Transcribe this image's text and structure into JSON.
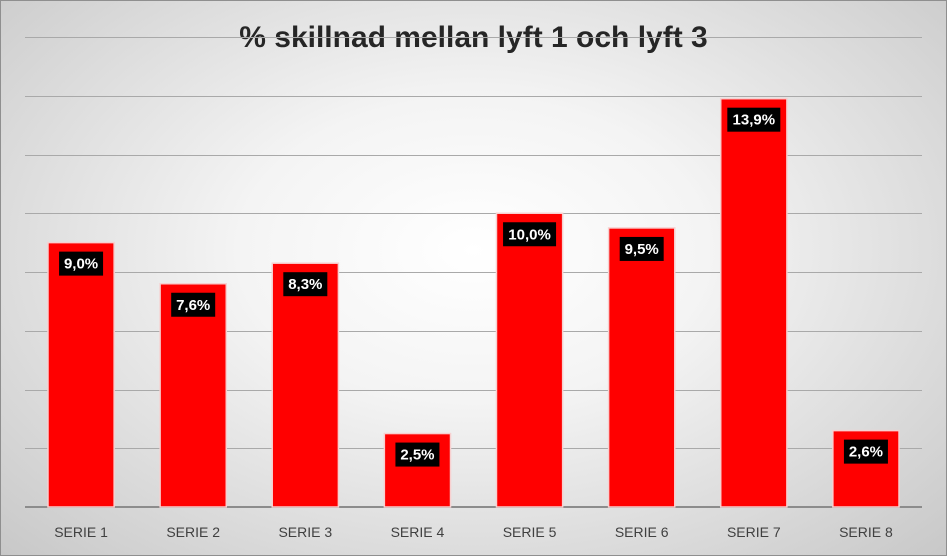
{
  "chart_data": {
    "type": "bar",
    "title": "% skillnad mellan lyft 1 och lyft 3",
    "categories": [
      "SERIE 1",
      "SERIE 2",
      "SERIE 3",
      "SERIE 4",
      "SERIE 5",
      "SERIE 6",
      "SERIE 7",
      "SERIE 8"
    ],
    "values": [
      9.0,
      7.6,
      8.3,
      2.5,
      10.0,
      9.5,
      13.9,
      2.6
    ],
    "data_labels": [
      "9,0%",
      "7,6%",
      "8,3%",
      "2,5%",
      "10,0%",
      "9,5%",
      "13,9%",
      "2,6%"
    ],
    "ylim": [
      0,
      16
    ],
    "y_gridline_step": 2,
    "y_tick_labels_shown": false,
    "grid": true,
    "legend": "none",
    "xlabel": "",
    "ylabel": "",
    "colors": {
      "bar": "#ff0000",
      "data_label_background": "#000000",
      "data_label_text": "#ffffff"
    }
  }
}
